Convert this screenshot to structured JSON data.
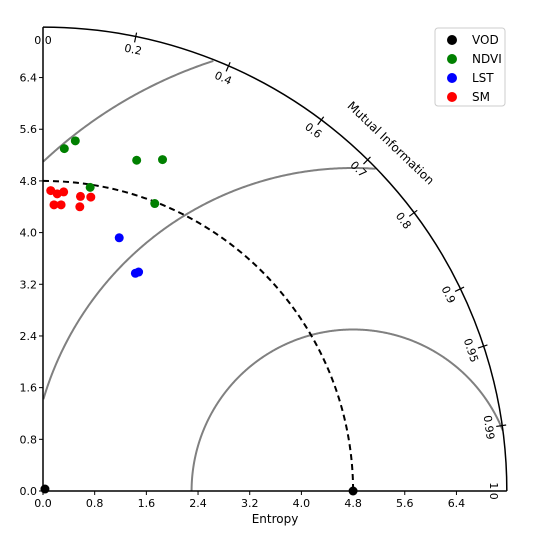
{
  "chart_data": {
    "type": "scatter",
    "subtype": "taylor-diagram",
    "xlabel": "Entropy",
    "angle_label": "Mutual Information",
    "x_ticks": [
      0.0,
      0.8,
      1.6,
      2.4,
      3.2,
      4.0,
      4.8,
      5.6,
      6.4
    ],
    "y_ticks": [
      0.0,
      0.8,
      1.6,
      2.4,
      3.2,
      4.0,
      4.8,
      5.6,
      6.4
    ],
    "x_tick_labels": [
      "0.0",
      "0.8",
      "1.6",
      "2.4",
      "3.2",
      "4.0",
      "4.8",
      "5.6",
      "6.4"
    ],
    "y_tick_labels": [
      "0.0",
      "0.8",
      "1.6",
      "2.4",
      "3.2",
      "4.0",
      "4.8",
      "5.6",
      "6.4"
    ],
    "corr_ticks": [
      0.0,
      0.2,
      0.4,
      0.6,
      0.7,
      0.8,
      0.9,
      0.95,
      0.99,
      1.0
    ],
    "corr_tick_labels": [
      "0.0",
      "0.2",
      "0.4",
      "0.6",
      "0.7",
      "0.8",
      "0.9",
      "0.95",
      "0.99",
      "1.0"
    ],
    "radius_max": 7.18,
    "reference_std": 4.8,
    "rms_contours": [
      2.5,
      5.0,
      7.0
    ],
    "legend_position": "upper-right",
    "series": [
      {
        "name": "VOD",
        "color": "#000000",
        "points": [
          [
            4.8,
            0.0
          ],
          [
            0.03,
            0.03
          ]
        ]
      },
      {
        "name": "NDVI",
        "color": "#008000",
        "points": [
          [
            0.33,
            5.3
          ],
          [
            0.5,
            5.42
          ],
          [
            1.45,
            5.12
          ],
          [
            1.85,
            5.13
          ],
          [
            0.73,
            4.7
          ],
          [
            1.73,
            4.45
          ]
        ]
      },
      {
        "name": "LST",
        "color": "#0000ff",
        "points": [
          [
            1.18,
            3.92
          ],
          [
            1.43,
            3.37
          ],
          [
            1.48,
            3.39
          ]
        ]
      },
      {
        "name": "SM",
        "color": "#ff0000",
        "points": [
          [
            0.12,
            4.65
          ],
          [
            0.22,
            4.6
          ],
          [
            0.32,
            4.63
          ],
          [
            0.17,
            4.43
          ],
          [
            0.28,
            4.43
          ],
          [
            0.58,
            4.56
          ],
          [
            0.74,
            4.55
          ],
          [
            0.57,
            4.4
          ]
        ]
      }
    ]
  }
}
